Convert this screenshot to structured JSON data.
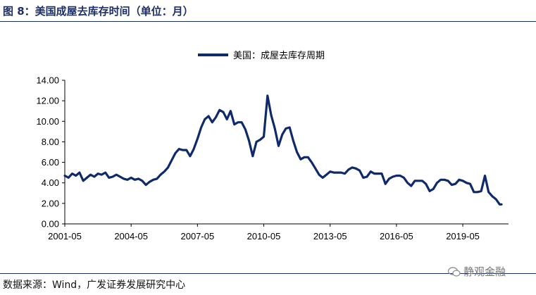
{
  "header": {
    "title": "图 8：美国成屋去库存时间（单位：月）"
  },
  "footer": {
    "source": "数据来源：Wind，广发证券发展研究中心",
    "watermark": "静观金融"
  },
  "colors": {
    "line": "#0f2a6b",
    "title": "#1b2f6b"
  },
  "chart_data": {
    "type": "line",
    "title": "",
    "xlabel": "",
    "ylabel": "",
    "ylim": [
      0,
      14
    ],
    "yticks": [
      "0.00",
      "2.00",
      "4.00",
      "6.00",
      "8.00",
      "10.00",
      "12.00",
      "14.00"
    ],
    "xticks": [
      "2001-05",
      "2004-05",
      "2007-05",
      "2010-05",
      "2013-05",
      "2016-05",
      "2019-05"
    ],
    "grid": false,
    "legend_position": "top-center",
    "series": [
      {
        "name": "美国：成屋去库存周期",
        "color": "#0f2a6b",
        "points": [
          [
            "2001-05",
            4.7
          ],
          [
            "2001-07",
            4.5
          ],
          [
            "2001-09",
            4.9
          ],
          [
            "2001-11",
            4.7
          ],
          [
            "2002-01",
            5.0
          ],
          [
            "2002-03",
            4.2
          ],
          [
            "2002-05",
            4.5
          ],
          [
            "2002-07",
            4.8
          ],
          [
            "2002-09",
            4.6
          ],
          [
            "2002-11",
            4.9
          ],
          [
            "2003-01",
            4.8
          ],
          [
            "2003-03",
            5.0
          ],
          [
            "2003-05",
            4.5
          ],
          [
            "2003-07",
            4.6
          ],
          [
            "2003-09",
            4.8
          ],
          [
            "2003-11",
            4.6
          ],
          [
            "2004-01",
            4.4
          ],
          [
            "2004-03",
            4.3
          ],
          [
            "2004-05",
            4.5
          ],
          [
            "2004-07",
            4.3
          ],
          [
            "2004-09",
            4.4
          ],
          [
            "2004-11",
            4.2
          ],
          [
            "2005-01",
            3.8
          ],
          [
            "2005-03",
            4.1
          ],
          [
            "2005-05",
            4.3
          ],
          [
            "2005-07",
            4.4
          ],
          [
            "2005-09",
            4.8
          ],
          [
            "2005-11",
            5.1
          ],
          [
            "2006-01",
            5.5
          ],
          [
            "2006-03",
            6.2
          ],
          [
            "2006-05",
            6.9
          ],
          [
            "2006-07",
            7.3
          ],
          [
            "2006-09",
            7.2
          ],
          [
            "2006-11",
            7.2
          ],
          [
            "2007-01",
            6.6
          ],
          [
            "2007-03",
            7.3
          ],
          [
            "2007-05",
            8.3
          ],
          [
            "2007-07",
            9.4
          ],
          [
            "2007-09",
            10.2
          ],
          [
            "2007-11",
            10.5
          ],
          [
            "2008-01",
            9.9
          ],
          [
            "2008-03",
            10.4
          ],
          [
            "2008-05",
            11.1
          ],
          [
            "2008-07",
            10.9
          ],
          [
            "2008-09",
            10.2
          ],
          [
            "2008-11",
            11.0
          ],
          [
            "2009-01",
            9.7
          ],
          [
            "2009-03",
            9.9
          ],
          [
            "2009-05",
            9.9
          ],
          [
            "2009-07",
            9.2
          ],
          [
            "2009-09",
            8.1
          ],
          [
            "2009-11",
            6.6
          ],
          [
            "2010-01",
            8.0
          ],
          [
            "2010-03",
            8.2
          ],
          [
            "2010-05",
            8.5
          ],
          [
            "2010-07",
            12.5
          ],
          [
            "2010-09",
            10.6
          ],
          [
            "2010-11",
            9.3
          ],
          [
            "2011-01",
            7.6
          ],
          [
            "2011-03",
            8.7
          ],
          [
            "2011-05",
            9.3
          ],
          [
            "2011-07",
            9.4
          ],
          [
            "2011-09",
            8.1
          ],
          [
            "2011-11",
            7.0
          ],
          [
            "2012-01",
            6.3
          ],
          [
            "2012-03",
            6.5
          ],
          [
            "2012-05",
            6.5
          ],
          [
            "2012-07",
            6.0
          ],
          [
            "2012-09",
            5.4
          ],
          [
            "2012-11",
            4.8
          ],
          [
            "2013-01",
            4.5
          ],
          [
            "2013-03",
            4.8
          ],
          [
            "2013-05",
            5.1
          ],
          [
            "2013-07",
            5.0
          ],
          [
            "2013-09",
            5.0
          ],
          [
            "2013-11",
            5.0
          ],
          [
            "2014-01",
            4.9
          ],
          [
            "2014-03",
            5.3
          ],
          [
            "2014-05",
            5.5
          ],
          [
            "2014-07",
            5.4
          ],
          [
            "2014-09",
            5.2
          ],
          [
            "2014-11",
            4.5
          ],
          [
            "2015-01",
            4.6
          ],
          [
            "2015-03",
            5.1
          ],
          [
            "2015-05",
            4.9
          ],
          [
            "2015-07",
            4.9
          ],
          [
            "2015-09",
            4.9
          ],
          [
            "2015-11",
            3.9
          ],
          [
            "2016-01",
            4.4
          ],
          [
            "2016-03",
            4.6
          ],
          [
            "2016-05",
            4.7
          ],
          [
            "2016-07",
            4.7
          ],
          [
            "2016-09",
            4.5
          ],
          [
            "2016-11",
            4.0
          ],
          [
            "2017-01",
            3.7
          ],
          [
            "2017-03",
            4.2
          ],
          [
            "2017-05",
            4.2
          ],
          [
            "2017-07",
            4.2
          ],
          [
            "2017-09",
            3.9
          ],
          [
            "2017-11",
            3.2
          ],
          [
            "2018-01",
            3.4
          ],
          [
            "2018-03",
            4.0
          ],
          [
            "2018-05",
            4.3
          ],
          [
            "2018-07",
            4.3
          ],
          [
            "2018-09",
            4.2
          ],
          [
            "2018-11",
            3.8
          ],
          [
            "2019-01",
            3.9
          ],
          [
            "2019-03",
            4.3
          ],
          [
            "2019-05",
            4.2
          ],
          [
            "2019-07",
            4.0
          ],
          [
            "2019-09",
            3.9
          ],
          [
            "2019-11",
            3.1
          ],
          [
            "2020-01",
            3.1
          ],
          [
            "2020-03",
            3.2
          ],
          [
            "2020-05",
            4.7
          ],
          [
            "2020-07",
            3.1
          ],
          [
            "2020-09",
            2.7
          ],
          [
            "2020-11",
            2.4
          ],
          [
            "2021-01",
            1.9
          ],
          [
            "2021-02",
            1.9
          ]
        ]
      }
    ]
  }
}
